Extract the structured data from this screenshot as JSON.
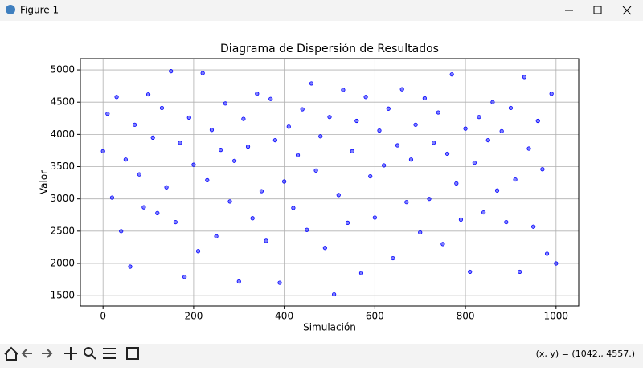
{
  "window": {
    "title": "Figure 1",
    "status": "(x, y) = (1042., 4557.)"
  },
  "chart_data": {
    "type": "scatter",
    "title": "Diagrama de Dispersión de Resultados",
    "x_label": "Simulación",
    "y_label": "Valor",
    "color": "#0000ff",
    "grid": true,
    "xlim": [
      -50,
      1050
    ],
    "ylim": [
      1340,
      5175
    ],
    "xticks": [
      0,
      200,
      400,
      600,
      800,
      1000
    ],
    "yticks": [
      1500,
      2000,
      2500,
      3000,
      3500,
      4000,
      4500,
      5000
    ],
    "x": [
      0,
      10,
      20,
      30,
      40,
      50,
      60,
      70,
      80,
      90,
      100,
      110,
      120,
      130,
      140,
      150,
      160,
      170,
      180,
      190,
      200,
      210,
      220,
      230,
      240,
      250,
      260,
      270,
      280,
      290,
      300,
      310,
      320,
      330,
      340,
      350,
      360,
      370,
      380,
      390,
      400,
      410,
      420,
      430,
      440,
      450,
      460,
      470,
      480,
      490,
      500,
      510,
      520,
      530,
      540,
      550,
      560,
      570,
      580,
      590,
      600,
      610,
      620,
      630,
      640,
      650,
      660,
      670,
      680,
      690,
      700,
      710,
      720,
      730,
      740,
      750,
      760,
      770,
      780,
      790,
      800,
      810,
      820,
      830,
      840,
      850,
      860,
      870,
      880,
      890,
      900,
      910,
      920,
      930,
      940,
      950,
      960,
      970,
      980,
      990,
      1000
    ],
    "values": [
      3740,
      4320,
      3020,
      4580,
      2500,
      3610,
      1950,
      4150,
      3380,
      2870,
      4620,
      3950,
      2780,
      4410,
      3180,
      4980,
      2640,
      3870,
      1790,
      4260,
      3530,
      2190,
      4950,
      3290,
      4070,
      2420,
      3760,
      4480,
      2960,
      3590,
      1720,
      4240,
      3810,
      2700,
      4630,
      3120,
      2350,
      4550,
      3910,
      1700,
      3270,
      4120,
      2860,
      3680,
      4390,
      2520,
      4790,
      3440,
      3970,
      2240,
      4270,
      1520,
      3060,
      4690,
      2630,
      3740,
      4210,
      1850,
      4580,
      3350,
      2710,
      4060,
      3520,
      4400,
      2080,
      3830,
      4700,
      2950,
      3610,
      4150,
      2480,
      4560,
      3000,
      3870,
      4340,
      2300,
      3700,
      4930,
      3240,
      2680,
      4090,
      1870,
      3560,
      4270,
      2790,
      3910,
      4500,
      3130,
      4050,
      2640,
      4410,
      3300,
      1870,
      4890,
      3780,
      2570,
      4210,
      3460,
      2150,
      4630,
      2000
    ]
  }
}
